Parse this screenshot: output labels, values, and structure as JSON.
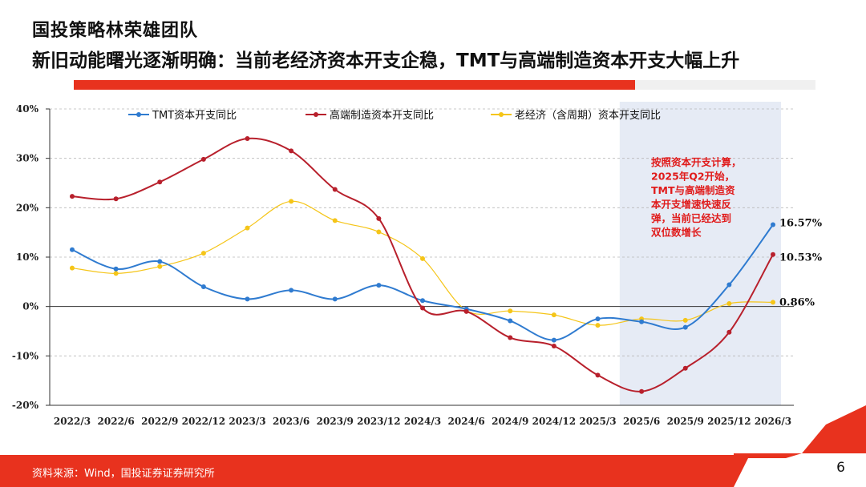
{
  "header": {
    "team": "国投策略林荣雄团队",
    "headline": "新旧动能曙光逐渐明确：当前老经济资本开支企稳，TMT与高端制造资本开支大幅上升"
  },
  "footer": {
    "source": "资料来源：Wind，国投证券证券研究所",
    "page": "6"
  },
  "colors": {
    "accent": "#e8321e",
    "tmt": "#2f7bd0",
    "high_end": "#b8202c",
    "old_economy": "#f5c518",
    "highlight_band": "#e6ebf5"
  },
  "chart_data": {
    "type": "line",
    "categories": [
      "2022/3",
      "2022/6",
      "2022/9",
      "2022/12",
      "2023/3",
      "2023/6",
      "2023/9",
      "2023/12",
      "2024/3",
      "2024/6",
      "2024/9",
      "2024/12",
      "2025/3",
      "2025/6",
      "2025/9",
      "2025/12",
      "2026/3"
    ],
    "y_ticks": [
      "40%",
      "30%",
      "20%",
      "10%",
      "0%",
      "-10%",
      "-20%"
    ],
    "ylim": [
      -20,
      40
    ],
    "grid": true,
    "legend_position": "top",
    "series": [
      {
        "name": "TMT资本开支同比",
        "color": "#2f7bd0",
        "values": [
          11.5,
          7.6,
          9.1,
          4.0,
          1.5,
          3.3,
          1.5,
          4.3,
          1.2,
          -0.5,
          -2.9,
          -6.8,
          -2.5,
          -3.1,
          -4.2,
          4.4,
          16.57
        ]
      },
      {
        "name": "高端制造资本开支同比",
        "color": "#b8202c",
        "values": [
          22.3,
          21.8,
          25.2,
          29.8,
          34.0,
          31.5,
          23.7,
          17.8,
          -0.3,
          -1.0,
          -6.3,
          -8.0,
          -13.9,
          -17.2,
          -12.5,
          -5.2,
          10.53
        ]
      },
      {
        "name": "老经济（含周期）资本开支同比",
        "color": "#f5c518",
        "values": [
          7.8,
          6.7,
          8.1,
          10.8,
          15.9,
          21.3,
          17.4,
          15.1,
          9.7,
          -0.8,
          -0.9,
          -1.7,
          -3.8,
          -2.5,
          -2.8,
          0.6,
          0.86
        ]
      }
    ],
    "end_labels": [
      "16.57%",
      "10.53%",
      "0.86%"
    ],
    "highlight_from": "2025/6",
    "highlight_to": "2026/3",
    "annotation": [
      "按照资本开支计算，",
      "2025年Q2开始，",
      "TMT与高端制造资",
      "本开支增速快速反",
      "弹，当前已经达到",
      "双位数增长"
    ]
  }
}
